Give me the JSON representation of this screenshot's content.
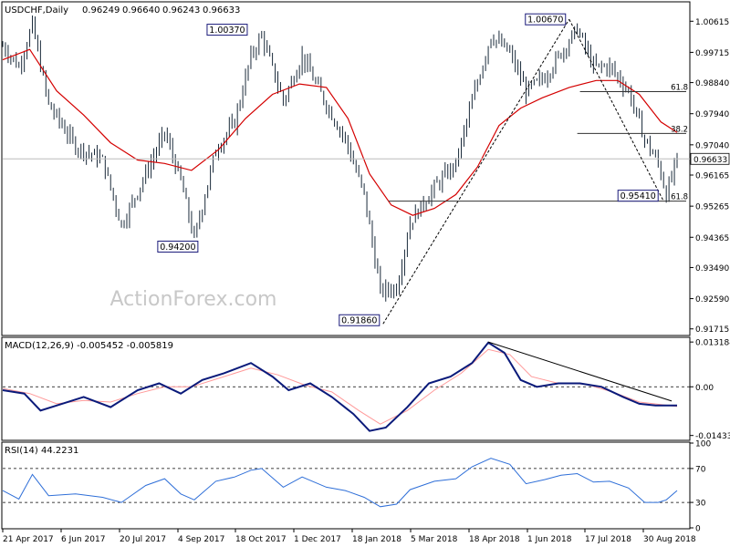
{
  "colors": {
    "candle": "#1a2a3a",
    "sma": "#d40000",
    "macd": "#0a1a7a",
    "signal": "#ff9999",
    "rsi": "#2f6fd8",
    "label_border": "#1a1a7a",
    "grid_dash": "#000000",
    "level_line": "#555555",
    "watermark": "#c8c8c8"
  },
  "watermark": "ActionForex.com",
  "x_axis_labels": [
    "21 Apr 2017",
    "6 Jun 2017",
    "20 Jul 2017",
    "4 Sep 2017",
    "18 Oct 2017",
    "1 Dec 2017",
    "18 Jan 2018",
    "5 Mar 2018",
    "18 Apr 2018",
    "1 Jun 2018",
    "17 Jul 2018",
    "30 Aug 2018"
  ],
  "chart_data": [
    {
      "type": "candlestick",
      "title": "USDCHF,Daily",
      "ohlc_header": [
        "0.96249",
        "0.96640",
        "0.96243",
        "0.96633"
      ],
      "current_price": "0.96633",
      "y_ticks": [
        "1.00615",
        "0.99715",
        "0.98840",
        "0.97940",
        "0.97040",
        "0.96165",
        "0.95265",
        "0.94365",
        "0.93490",
        "0.92590",
        "0.91715"
      ],
      "ylim": [
        0.9155,
        1.0115
      ],
      "price_path": [
        {
          "x": 0,
          "y": 0.999
        },
        {
          "x": 6,
          "y": 0.993
        },
        {
          "x": 11,
          "y": 1.005
        },
        {
          "x": 17,
          "y": 0.982
        },
        {
          "x": 27,
          "y": 0.97
        },
        {
          "x": 37,
          "y": 0.966
        },
        {
          "x": 44,
          "y": 0.947
        },
        {
          "x": 53,
          "y": 0.962
        },
        {
          "x": 60,
          "y": 0.974
        },
        {
          "x": 66,
          "y": 0.96
        },
        {
          "x": 71,
          "y": 0.943
        },
        {
          "x": 79,
          "y": 0.969
        },
        {
          "x": 86,
          "y": 0.977
        },
        {
          "x": 92,
          "y": 0.996
        },
        {
          "x": 96,
          "y": 1.002
        },
        {
          "x": 104,
          "y": 0.983
        },
        {
          "x": 111,
          "y": 0.996
        },
        {
          "x": 120,
          "y": 0.982
        },
        {
          "x": 127,
          "y": 0.972
        },
        {
          "x": 134,
          "y": 0.956
        },
        {
          "x": 140,
          "y": 0.928
        },
        {
          "x": 146,
          "y": 0.929
        },
        {
          "x": 151,
          "y": 0.948
        },
        {
          "x": 160,
          "y": 0.958
        },
        {
          "x": 168,
          "y": 0.965
        },
        {
          "x": 174,
          "y": 0.983
        },
        {
          "x": 181,
          "y": 1.002
        },
        {
          "x": 188,
          "y": 0.997
        },
        {
          "x": 194,
          "y": 0.986
        },
        {
          "x": 201,
          "y": 0.99
        },
        {
          "x": 207,
          "y": 0.997
        },
        {
          "x": 213,
          "y": 1.004
        },
        {
          "x": 219,
          "y": 0.993
        },
        {
          "x": 225,
          "y": 0.993
        },
        {
          "x": 232,
          "y": 0.986
        },
        {
          "x": 238,
          "y": 0.972
        },
        {
          "x": 243,
          "y": 0.965
        },
        {
          "x": 246,
          "y": 0.956
        },
        {
          "x": 250,
          "y": 0.9663
        }
      ],
      "series": [
        {
          "name": "",
          "values": [
            {
              "x": 0,
              "y": 0.995
            },
            {
              "x": 10,
              "y": 0.998
            },
            {
              "x": 20,
              "y": 0.986
            },
            {
              "x": 30,
              "y": 0.979
            },
            {
              "x": 40,
              "y": 0.971
            },
            {
              "x": 50,
              "y": 0.966
            },
            {
              "x": 60,
              "y": 0.965
            },
            {
              "x": 70,
              "y": 0.963
            },
            {
              "x": 80,
              "y": 0.969
            },
            {
              "x": 90,
              "y": 0.978
            },
            {
              "x": 100,
              "y": 0.985
            },
            {
              "x": 110,
              "y": 0.988
            },
            {
              "x": 120,
              "y": 0.987
            },
            {
              "x": 128,
              "y": 0.978
            },
            {
              "x": 136,
              "y": 0.962
            },
            {
              "x": 144,
              "y": 0.953
            },
            {
              "x": 152,
              "y": 0.95
            },
            {
              "x": 160,
              "y": 0.952
            },
            {
              "x": 168,
              "y": 0.956
            },
            {
              "x": 176,
              "y": 0.964
            },
            {
              "x": 184,
              "y": 0.976
            },
            {
              "x": 192,
              "y": 0.981
            },
            {
              "x": 200,
              "y": 0.984
            },
            {
              "x": 210,
              "y": 0.987
            },
            {
              "x": 220,
              "y": 0.989
            },
            {
              "x": 228,
              "y": 0.989
            },
            {
              "x": 236,
              "y": 0.985
            },
            {
              "x": 244,
              "y": 0.977
            },
            {
              "x": 250,
              "y": 0.974
            }
          ]
        }
      ],
      "price_labels": [
        {
          "text": "1.00370",
          "x": 92,
          "y": 1.0037
        },
        {
          "text": "0.94200",
          "x": 71,
          "y": 0.942
        },
        {
          "text": "0.91860",
          "x": 141,
          "y": 0.9186
        },
        {
          "text": "1.00670",
          "x": 210,
          "y": 1.0067
        },
        {
          "text": "0.95410",
          "x": 245,
          "y": 0.9541
        }
      ],
      "fib_levels": [
        {
          "label": "61.8",
          "y": 0.9858
        },
        {
          "label": "38.2",
          "y": 0.9737
        },
        {
          "label": "61.8",
          "y": 0.9541
        }
      ],
      "trendlines": [
        {
          "from": {
            "x": 141,
            "y": 0.9186
          },
          "to": {
            "x": 210,
            "y": 1.0067
          }
        },
        {
          "from": {
            "x": 210,
            "y": 1.0067
          },
          "to": {
            "x": 245,
            "y": 0.9541
          }
        }
      ]
    },
    {
      "type": "line",
      "title": "MACD(12,26,9) -0.005452 -0.005819",
      "y_ticks": [
        "0.013184",
        "0.00",
        "-0.014339"
      ],
      "ylim": [
        -0.0155,
        0.0143
      ],
      "zero_line": 0,
      "series": [
        {
          "name": "",
          "values": [
            {
              "x": 0,
              "y": -0.001
            },
            {
              "x": 8,
              "y": -0.002
            },
            {
              "x": 14,
              "y": -0.007
            },
            {
              "x": 22,
              "y": -0.005
            },
            {
              "x": 30,
              "y": -0.003
            },
            {
              "x": 40,
              "y": -0.006
            },
            {
              "x": 50,
              "y": -0.001
            },
            {
              "x": 58,
              "y": 0.001
            },
            {
              "x": 66,
              "y": -0.002
            },
            {
              "x": 74,
              "y": 0.002
            },
            {
              "x": 82,
              "y": 0.004
            },
            {
              "x": 92,
              "y": 0.007
            },
            {
              "x": 100,
              "y": 0.003
            },
            {
              "x": 106,
              "y": -0.001
            },
            {
              "x": 114,
              "y": 0.001
            },
            {
              "x": 122,
              "y": -0.003
            },
            {
              "x": 130,
              "y": -0.008
            },
            {
              "x": 136,
              "y": -0.013
            },
            {
              "x": 142,
              "y": -0.012
            },
            {
              "x": 150,
              "y": -0.006
            },
            {
              "x": 158,
              "y": 0.001
            },
            {
              "x": 166,
              "y": 0.003
            },
            {
              "x": 174,
              "y": 0.007
            },
            {
              "x": 180,
              "y": 0.013
            },
            {
              "x": 186,
              "y": 0.01
            },
            {
              "x": 192,
              "y": 0.002
            },
            {
              "x": 198,
              "y": 0.0
            },
            {
              "x": 206,
              "y": 0.001
            },
            {
              "x": 214,
              "y": 0.001
            },
            {
              "x": 222,
              "y": 0.0
            },
            {
              "x": 230,
              "y": -0.003
            },
            {
              "x": 236,
              "y": -0.005
            },
            {
              "x": 242,
              "y": -0.0055
            },
            {
              "x": 250,
              "y": -0.0055
            }
          ]
        },
        {
          "name": "",
          "values": [
            {
              "x": 0,
              "y": -0.0005
            },
            {
              "x": 10,
              "y": -0.002
            },
            {
              "x": 20,
              "y": -0.005
            },
            {
              "x": 30,
              "y": -0.004
            },
            {
              "x": 40,
              "y": -0.0045
            },
            {
              "x": 50,
              "y": -0.002
            },
            {
              "x": 60,
              "y": 0.0
            },
            {
              "x": 70,
              "y": 0.0
            },
            {
              "x": 80,
              "y": 0.0025
            },
            {
              "x": 92,
              "y": 0.0055
            },
            {
              "x": 102,
              "y": 0.0035
            },
            {
              "x": 112,
              "y": 0.0005
            },
            {
              "x": 122,
              "y": -0.0015
            },
            {
              "x": 132,
              "y": -0.007
            },
            {
              "x": 140,
              "y": -0.011
            },
            {
              "x": 150,
              "y": -0.007
            },
            {
              "x": 160,
              "y": -0.001
            },
            {
              "x": 170,
              "y": 0.004
            },
            {
              "x": 180,
              "y": 0.011
            },
            {
              "x": 188,
              "y": 0.0095
            },
            {
              "x": 196,
              "y": 0.003
            },
            {
              "x": 206,
              "y": 0.001
            },
            {
              "x": 216,
              "y": 0.0008
            },
            {
              "x": 226,
              "y": -0.0015
            },
            {
              "x": 236,
              "y": -0.0045
            },
            {
              "x": 250,
              "y": -0.0058
            }
          ]
        }
      ],
      "trendlines": [
        {
          "from": {
            "x": 180,
            "y": 0.0132
          },
          "to": {
            "x": 248,
            "y": -0.0042
          }
        }
      ]
    },
    {
      "type": "line",
      "title": "RSI(14) 44.2231",
      "y_ticks": [
        "100",
        "70",
        "30",
        "0"
      ],
      "ylim": [
        0,
        100
      ],
      "levels": [
        70,
        30
      ],
      "series": [
        {
          "name": "",
          "values": [
            {
              "x": 0,
              "y": 44
            },
            {
              "x": 6,
              "y": 34
            },
            {
              "x": 11,
              "y": 63
            },
            {
              "x": 17,
              "y": 38
            },
            {
              "x": 27,
              "y": 40
            },
            {
              "x": 37,
              "y": 36
            },
            {
              "x": 44,
              "y": 30
            },
            {
              "x": 53,
              "y": 50
            },
            {
              "x": 60,
              "y": 58
            },
            {
              "x": 66,
              "y": 40
            },
            {
              "x": 71,
              "y": 33
            },
            {
              "x": 79,
              "y": 55
            },
            {
              "x": 86,
              "y": 60
            },
            {
              "x": 92,
              "y": 68
            },
            {
              "x": 96,
              "y": 70
            },
            {
              "x": 104,
              "y": 48
            },
            {
              "x": 111,
              "y": 60
            },
            {
              "x": 120,
              "y": 48
            },
            {
              "x": 127,
              "y": 44
            },
            {
              "x": 134,
              "y": 36
            },
            {
              "x": 140,
              "y": 25
            },
            {
              "x": 146,
              "y": 28
            },
            {
              "x": 151,
              "y": 45
            },
            {
              "x": 160,
              "y": 55
            },
            {
              "x": 168,
              "y": 58
            },
            {
              "x": 174,
              "y": 72
            },
            {
              "x": 181,
              "y": 82
            },
            {
              "x": 188,
              "y": 75
            },
            {
              "x": 194,
              "y": 52
            },
            {
              "x": 201,
              "y": 57
            },
            {
              "x": 207,
              "y": 62
            },
            {
              "x": 213,
              "y": 64
            },
            {
              "x": 219,
              "y": 54
            },
            {
              "x": 225,
              "y": 55
            },
            {
              "x": 232,
              "y": 47
            },
            {
              "x": 238,
              "y": 30
            },
            {
              "x": 243,
              "y": 30
            },
            {
              "x": 246,
              "y": 33
            },
            {
              "x": 250,
              "y": 44
            }
          ]
        }
      ]
    }
  ]
}
